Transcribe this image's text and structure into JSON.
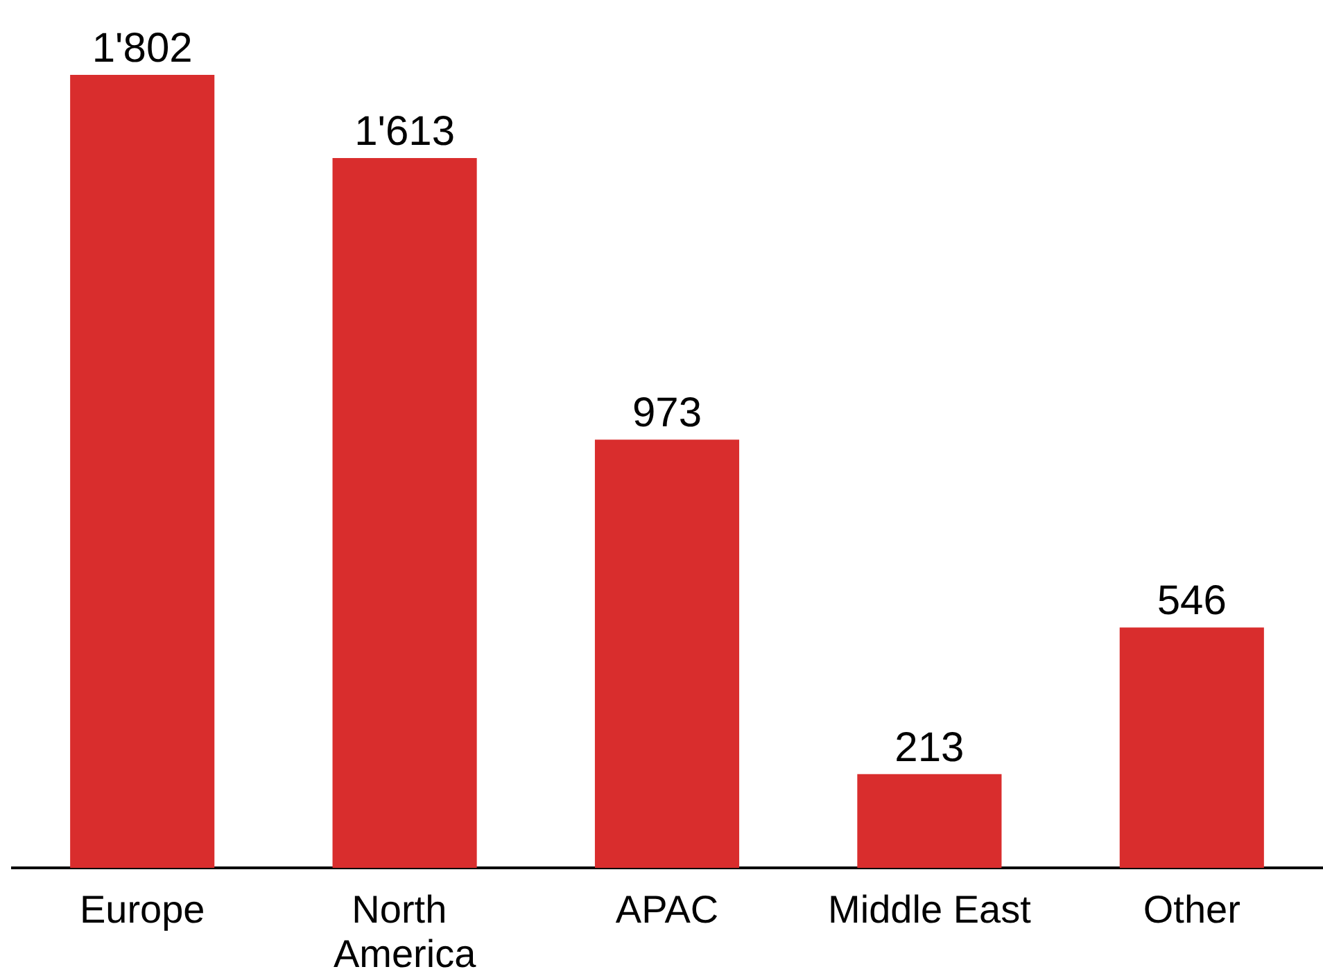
{
  "chart_data": {
    "type": "bar",
    "categories": [
      "Europe",
      "North America",
      "APAC",
      "Middle East",
      "Other"
    ],
    "values": [
      1802,
      1613,
      973,
      213,
      546
    ],
    "value_labels": [
      "1'802",
      "1'613",
      "973",
      "213",
      "546"
    ],
    "color": "#d92d2d"
  }
}
